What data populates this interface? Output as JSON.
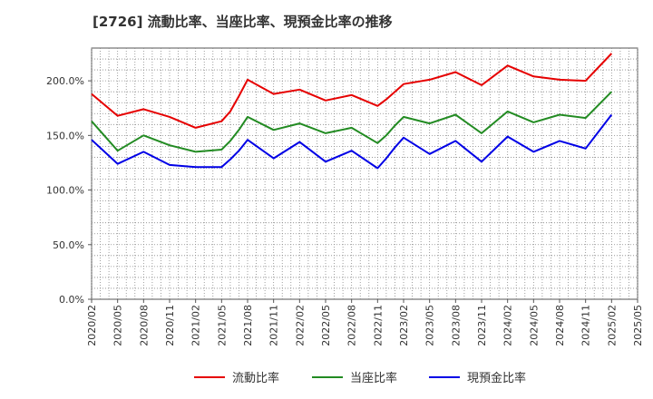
{
  "chart_data": {
    "type": "line",
    "title": "[2726]  流動比率、当座比率、現預金比率の推移",
    "xlabel": "",
    "ylabel": "",
    "ylim": [
      0,
      230
    ],
    "yticks": [
      0,
      50,
      100,
      150,
      200
    ],
    "ytick_labels": [
      "0.0%",
      "50.0%",
      "100.0%",
      "150.0%",
      "200.0%"
    ],
    "x_ticks": [
      "2020/02",
      "2020/05",
      "2020/08",
      "2020/11",
      "2021/02",
      "2021/05",
      "2021/08",
      "2021/11",
      "2022/02",
      "2022/05",
      "2022/08",
      "2022/11",
      "2023/02",
      "2023/05",
      "2023/08",
      "2023/11",
      "2024/02",
      "2024/05",
      "2024/08",
      "2024/11",
      "2025/02",
      "2025/05"
    ],
    "grid": true,
    "legend_position": "bottom",
    "x": [
      "2020/02",
      "2020/05",
      "2020/08",
      "2020/11",
      "2021/02",
      "2021/05",
      "2021/06",
      "2021/07",
      "2021/08",
      "2021/11",
      "2022/02",
      "2022/05",
      "2022/08",
      "2022/11",
      "2022/12",
      "2023/01",
      "2023/02",
      "2023/05",
      "2023/08",
      "2023/11",
      "2024/02",
      "2024/05",
      "2024/08",
      "2024/11",
      "2025/02"
    ],
    "series": [
      {
        "name": "流動比率",
        "color": "#e60000",
        "values": [
          188,
          168,
          174,
          167,
          157,
          163,
          172,
          186,
          201,
          188,
          192,
          182,
          187,
          177,
          183,
          190,
          197,
          201,
          208,
          196,
          214,
          204,
          201,
          200,
          225
        ]
      },
      {
        "name": "当座比率",
        "color": "#228b22",
        "values": [
          163,
          136,
          150,
          141,
          135,
          137,
          145,
          155,
          167,
          155,
          161,
          152,
          157,
          143,
          150,
          159,
          167,
          161,
          169,
          152,
          172,
          162,
          169,
          166,
          190
        ]
      },
      {
        "name": "現預金比率",
        "color": "#0000e6",
        "values": [
          146,
          124,
          135,
          123,
          121,
          121,
          128,
          136,
          146,
          129,
          144,
          126,
          136,
          120,
          129,
          139,
          148,
          133,
          145,
          126,
          149,
          135,
          145,
          138,
          169
        ]
      }
    ]
  }
}
